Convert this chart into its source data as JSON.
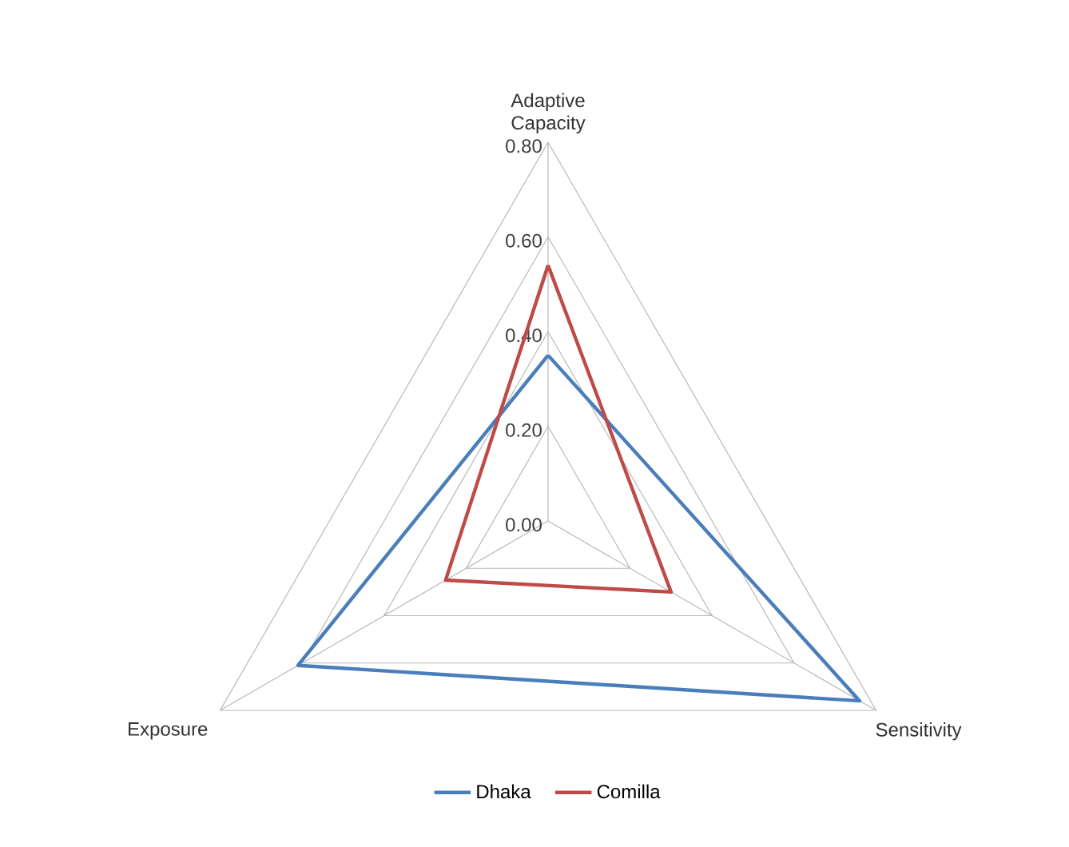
{
  "chart_data": {
    "type": "radar",
    "categories": [
      "Adaptive Capacity",
      "Sensitivity",
      "Exposure"
    ],
    "series": [
      {
        "name": "Dhaka",
        "color": "#4a7ebb",
        "values": [
          0.35,
          0.76,
          0.61
        ]
      },
      {
        "name": "Comilla",
        "color": "#be4b48",
        "values": [
          0.54,
          0.3,
          0.25
        ]
      }
    ],
    "ylim": [
      0,
      0.8
    ],
    "yticks": [
      {
        "value": 0,
        "label": "0.00"
      },
      {
        "value": 0.2,
        "label": "0.20"
      },
      {
        "value": 0.4,
        "label": "0.40"
      },
      {
        "value": 0.6,
        "label": "0.60"
      },
      {
        "value": 0.8,
        "label": "0.80"
      }
    ],
    "grid": true,
    "legend": "bottom"
  }
}
